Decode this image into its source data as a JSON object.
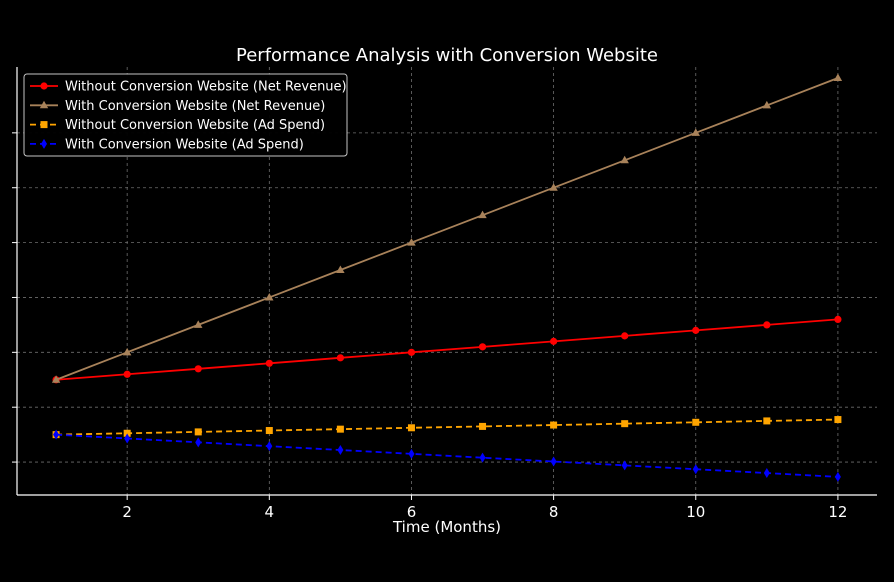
{
  "chart_data": {
    "type": "line",
    "title": "Performance Analysis with Conversion Website",
    "xlabel": "Time (Months)",
    "ylabel": "",
    "x": [
      1,
      2,
      3,
      4,
      5,
      6,
      7,
      8,
      9,
      10,
      11,
      12
    ],
    "xticks": [
      2,
      4,
      6,
      8,
      10,
      12
    ],
    "xlim": [
      0.45,
      12.55
    ],
    "ylim": [
      -1.2,
      14.4
    ],
    "yticks_count_note": "unlabeled",
    "grid": true,
    "legend_position": "top-left",
    "background": "#000000",
    "series": [
      {
        "name": "Without Conversion Website (Net Revenue)",
        "color": "#ff0000",
        "line_style": "solid",
        "marker": "circle",
        "values": [
          3.0,
          3.2,
          3.4,
          3.6,
          3.8,
          4.0,
          4.2,
          4.4,
          4.6,
          4.8,
          5.0,
          5.2
        ]
      },
      {
        "name": "With Conversion Website (Net Revenue)",
        "color": "#a8825a",
        "line_style": "solid",
        "marker": "triangle",
        "values": [
          3.0,
          4.0,
          5.0,
          6.0,
          7.0,
          8.0,
          9.0,
          10.0,
          11.0,
          12.0,
          13.0,
          14.0
        ]
      },
      {
        "name": "Without Conversion Website (Ad Spend)",
        "color": "#ffa500",
        "line_style": "dashed",
        "marker": "square",
        "values": [
          1.0,
          1.05,
          1.1,
          1.15,
          1.2,
          1.25,
          1.3,
          1.35,
          1.4,
          1.45,
          1.5,
          1.55
        ]
      },
      {
        "name": "With Conversion Website (Ad Spend)",
        "color": "#0000ff",
        "line_style": "dashed",
        "marker": "diamond",
        "values": [
          1.0,
          0.86,
          0.72,
          0.58,
          0.44,
          0.3,
          0.16,
          0.02,
          -0.12,
          -0.26,
          -0.4,
          -0.54
        ]
      }
    ]
  }
}
